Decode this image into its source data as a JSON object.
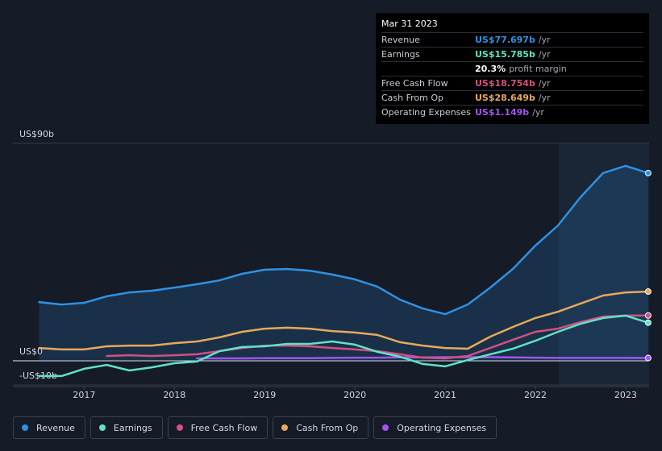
{
  "chart_data": {
    "type": "line",
    "x": [
      2016.5,
      2016.75,
      2017.0,
      2017.25,
      2017.5,
      2017.75,
      2018.0,
      2018.25,
      2018.5,
      2018.75,
      2019.0,
      2019.25,
      2019.5,
      2019.75,
      2020.0,
      2020.25,
      2020.5,
      2020.75,
      2021.0,
      2021.25,
      2021.5,
      2021.75,
      2022.0,
      2022.25,
      2022.5,
      2022.75,
      2023.0,
      2023.25
    ],
    "xlim": [
      2016.21,
      2023.26
    ],
    "xticks": [
      2017,
      2018,
      2019,
      2020,
      2021,
      2022,
      2023
    ],
    "ylim": [
      -10,
      90
    ],
    "yticks": [
      {
        "value": 90,
        "label": "US$90b"
      },
      {
        "value": 0,
        "label": "US$0"
      },
      {
        "value": -10,
        "label": "-US$10b"
      }
    ],
    "grid": true,
    "series": [
      {
        "name": "Revenue",
        "color": "#2f91e3",
        "area": true,
        "values": [
          24.3,
          23.3,
          24,
          26.7,
          28.3,
          29,
          30.3,
          31.7,
          33.3,
          36,
          37.7,
          38,
          37.3,
          35.7,
          33.7,
          30.7,
          25.3,
          21.7,
          19.3,
          23.3,
          30.3,
          38,
          47.7,
          56,
          67.7,
          77.7,
          80.7,
          77.697
        ]
      },
      {
        "name": "Earnings",
        "color": "#5fe3c6",
        "values": [
          -6.3,
          -6.3,
          -3.3,
          -1.7,
          -4,
          -2.7,
          -1,
          -0.3,
          4,
          5.7,
          6,
          7,
          7,
          8,
          6.7,
          3.7,
          1.7,
          -1.3,
          -2.3,
          0.3,
          2.7,
          5,
          8.3,
          12,
          15.3,
          17.7,
          18.7,
          15.785
        ]
      },
      {
        "name": "Free Cash Flow",
        "color": "#d3507f",
        "values": [
          null,
          null,
          null,
          2,
          2.3,
          2,
          2.3,
          2.7,
          4,
          5.3,
          6.3,
          6.3,
          6,
          5.3,
          4.7,
          4,
          2.7,
          1.3,
          1,
          2,
          5.3,
          8.7,
          12,
          13.3,
          16,
          18.3,
          18.7,
          18.754
        ]
      },
      {
        "name": "Cash From Op",
        "color": "#e8a95b",
        "values": [
          5.3,
          4.7,
          4.7,
          6,
          6.3,
          6.3,
          7.3,
          8,
          9.7,
          12,
          13.3,
          13.7,
          13.3,
          12.3,
          11.7,
          10.7,
          7.7,
          6.3,
          5.3,
          5,
          10,
          14,
          17.7,
          20.3,
          23.7,
          27,
          28.3,
          28.649
        ]
      },
      {
        "name": "Operating Expenses",
        "color": "#a453f0",
        "values": [
          null,
          null,
          null,
          null,
          null,
          null,
          null,
          1.0,
          1.0,
          1.0,
          1.1,
          1.1,
          1.1,
          1.2,
          1.3,
          1.3,
          1.4,
          1.4,
          1.5,
          1.5,
          1.5,
          1.4,
          1.3,
          1.2,
          1.2,
          1.2,
          1.2,
          1.149
        ]
      }
    ]
  },
  "tooltip": {
    "date": "Mar 31 2023",
    "rows": [
      {
        "label": "Revenue",
        "value": "US$77.697b",
        "unit": "/yr",
        "color": "#2f91e3"
      },
      {
        "label": "Earnings",
        "value": "US$15.785b",
        "unit": "/yr",
        "color": "#5fe3c6"
      },
      {
        "value": "20.3%",
        "unit": "profit margin",
        "color": "#ffffff"
      },
      {
        "label": "Free Cash Flow",
        "value": "US$18.754b",
        "unit": "/yr",
        "color": "#d3507f"
      },
      {
        "label": "Cash From Op",
        "value": "US$28.649b",
        "unit": "/yr",
        "color": "#e8a95b"
      },
      {
        "label": "Operating Expenses",
        "value": "US$1.149b",
        "unit": "/yr",
        "color": "#a453f0"
      }
    ]
  }
}
